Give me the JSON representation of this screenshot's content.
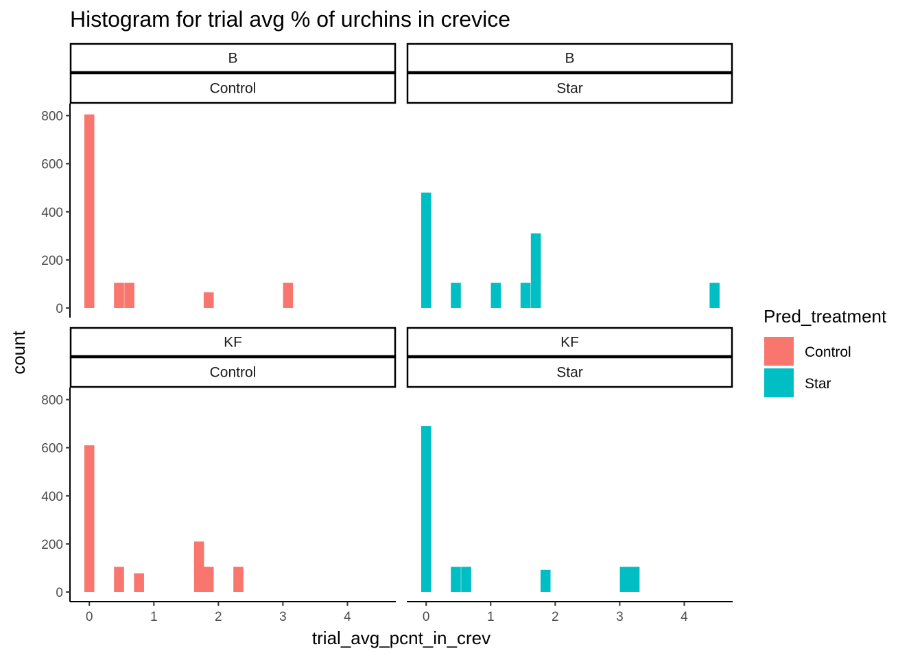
{
  "chart_data": {
    "type": "bar",
    "title": "Histogram for trial avg % of urchins in crevice",
    "xlabel": "trial_avg_pcnt_in_crev",
    "ylabel": "count",
    "xlim": [
      -0.3,
      4.75
    ],
    "ylim": [
      -40,
      850
    ],
    "x_ticks": [
      0,
      1,
      2,
      3,
      4
    ],
    "y_ticks": [
      0,
      200,
      400,
      600,
      800
    ],
    "bin_width": 0.155,
    "grid": false,
    "legend": {
      "title": "Pred_treatment",
      "position": "right",
      "entries": [
        {
          "label": "Control",
          "color": "#F8766D"
        },
        {
          "label": "Star",
          "color": "#00BFC4"
        }
      ]
    },
    "panels": [
      {
        "row_label": "B",
        "col_label": "Control",
        "fill": "#F8766D",
        "bins": [
          {
            "x": 0.0,
            "count": 805
          },
          {
            "x": 0.46,
            "count": 105
          },
          {
            "x": 0.62,
            "count": 105
          },
          {
            "x": 1.85,
            "count": 65
          },
          {
            "x": 3.08,
            "count": 105
          }
        ]
      },
      {
        "row_label": "B",
        "col_label": "Star",
        "fill": "#00BFC4",
        "bins": [
          {
            "x": 0.0,
            "count": 480
          },
          {
            "x": 0.46,
            "count": 105
          },
          {
            "x": 1.08,
            "count": 105
          },
          {
            "x": 1.54,
            "count": 105
          },
          {
            "x": 1.7,
            "count": 310
          },
          {
            "x": 4.47,
            "count": 105
          }
        ]
      },
      {
        "row_label": "KF",
        "col_label": "Control",
        "fill": "#F8766D",
        "bins": [
          {
            "x": 0.0,
            "count": 610
          },
          {
            "x": 0.46,
            "count": 105
          },
          {
            "x": 0.77,
            "count": 78
          },
          {
            "x": 1.7,
            "count": 210
          },
          {
            "x": 1.85,
            "count": 105
          },
          {
            "x": 2.31,
            "count": 105
          }
        ]
      },
      {
        "row_label": "KF",
        "col_label": "Star",
        "fill": "#00BFC4",
        "bins": [
          {
            "x": 0.0,
            "count": 690
          },
          {
            "x": 0.46,
            "count": 105
          },
          {
            "x": 0.62,
            "count": 105
          },
          {
            "x": 1.85,
            "count": 92
          },
          {
            "x": 3.08,
            "count": 105
          },
          {
            "x": 3.23,
            "count": 105
          }
        ]
      }
    ]
  }
}
